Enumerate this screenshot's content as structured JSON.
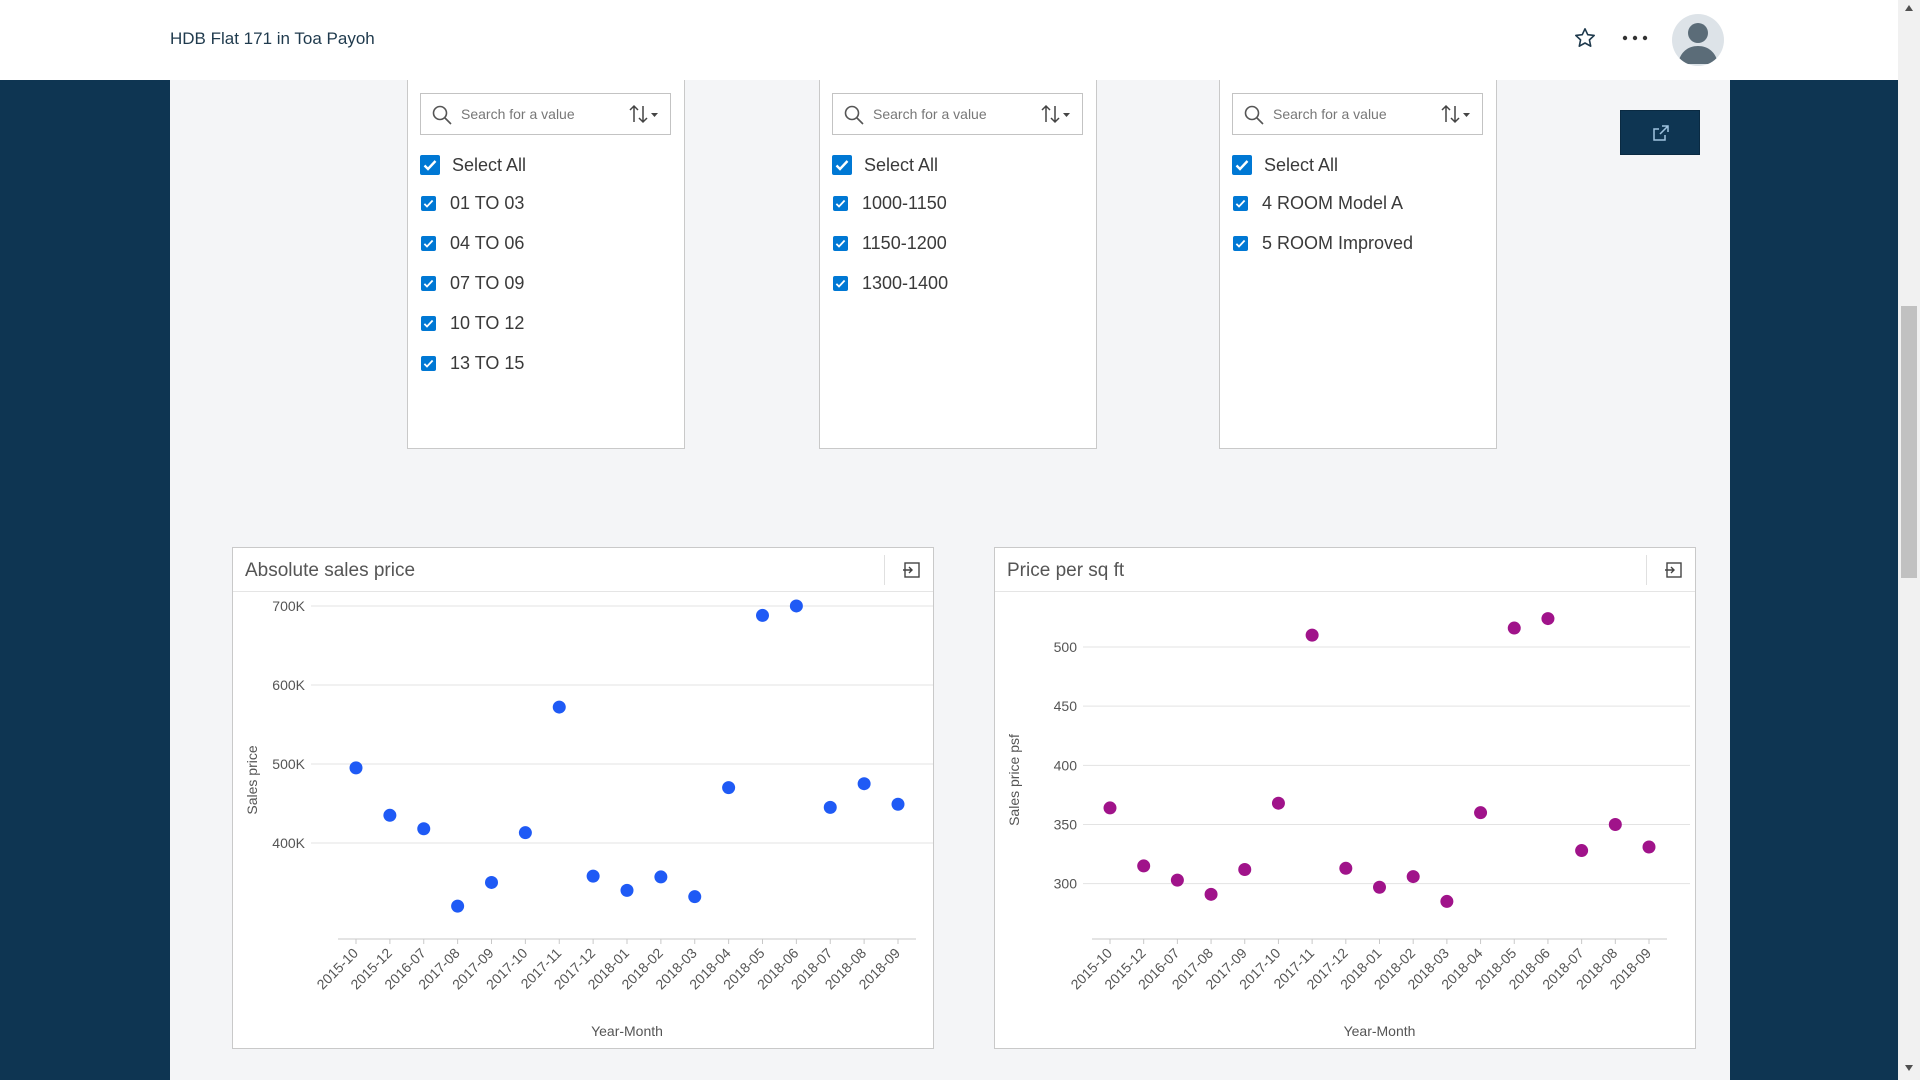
{
  "header": {
    "title": "HDB Flat 171 in Toa Payoh"
  },
  "icons": [
    "star-icon",
    "more-icon",
    "avatar-icon",
    "search-icon",
    "sort-icon",
    "share-icon",
    "expand-icon"
  ],
  "colors": {
    "navy": "#0e3552",
    "checkbox": "#0078d4",
    "series_blue": "#1f5af5",
    "series_purple": "#a0138a"
  },
  "filters": [
    {
      "placeholder": "Search for a value",
      "select_all": "Select All",
      "items": [
        "01 TO 03",
        "04 TO 06",
        "07 TO 09",
        "10 TO 12",
        "13 TO 15"
      ]
    },
    {
      "placeholder": "Search for a value",
      "select_all": "Select All",
      "items": [
        "1000-1150",
        "1150-1200",
        "1300-1400"
      ]
    },
    {
      "placeholder": "Search for a value",
      "select_all": "Select All",
      "items": [
        "4 ROOM Model A",
        "5 ROOM Improved"
      ]
    }
  ],
  "chart_data": [
    {
      "type": "scatter",
      "title": "Absolute sales price",
      "xlabel": "Year-Month",
      "ylabel": "Sales price",
      "categories": [
        "2015-10",
        "2015-12",
        "2016-07",
        "2017-08",
        "2017-09",
        "2017-10",
        "2017-11",
        "2017-12",
        "2018-01",
        "2018-02",
        "2018-03",
        "2018-04",
        "2018-05",
        "2018-06",
        "2018-07",
        "2018-08",
        "2018-09"
      ],
      "values": [
        495000,
        435000,
        418000,
        320000,
        350000,
        413000,
        572000,
        358000,
        340000,
        357000,
        332000,
        470000,
        688000,
        700000,
        445000,
        475000,
        449000
      ],
      "yticks": [
        400000,
        500000,
        600000,
        700000
      ],
      "ytick_labels": [
        "400K",
        "500K",
        "600K",
        "700K"
      ],
      "ylim": [
        305000,
        705000
      ],
      "grid": true
    },
    {
      "type": "scatter",
      "title": "Price per sq ft",
      "xlabel": "Year-Month",
      "ylabel": "Sales price psf",
      "categories": [
        "2015-10",
        "2015-12",
        "2016-07",
        "2017-08",
        "2017-09",
        "2017-10",
        "2017-11",
        "2017-12",
        "2018-01",
        "2018-02",
        "2018-03",
        "2018-04",
        "2018-05",
        "2018-06",
        "2018-07",
        "2018-08",
        "2018-09"
      ],
      "values": [
        364,
        315,
        303,
        291,
        312,
        368,
        510,
        313,
        297,
        306,
        285,
        360,
        516,
        524,
        328,
        350,
        331
      ],
      "yticks": [
        300,
        350,
        400,
        450,
        500
      ],
      "ytick_labels": [
        "300",
        "350",
        "400",
        "450",
        "500"
      ],
      "ylim": [
        271,
        538
      ],
      "grid": true
    }
  ]
}
